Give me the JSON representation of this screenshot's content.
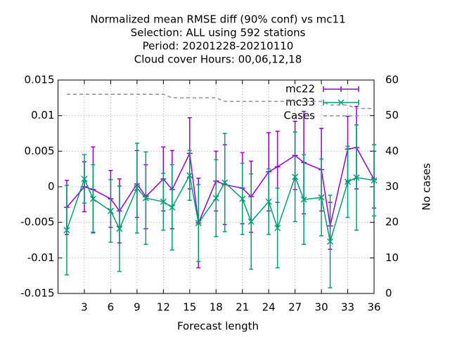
{
  "chart_data": {
    "type": "line",
    "title": [
      "Normalized mean RMSE diff (90% conf) vs mc11",
      "Selection: ALL using   592 stations",
      "Period: 20201228-20210110",
      "Cloud cover   Hours:  00,06,12,18"
    ],
    "x_label": "Forecast length",
    "y2_label": "No cases",
    "x": [
      1,
      3,
      4,
      6,
      7,
      9,
      10,
      12,
      13,
      15,
      16,
      18,
      19,
      21,
      22,
      24,
      25,
      27,
      28,
      30,
      31,
      33,
      34,
      36
    ],
    "series": [
      {
        "name": "mc22",
        "color": "#9400d3",
        "marker": "plus",
        "values": [
          -0.0029,
          0.0,
          -0.0004,
          -0.0017,
          -0.0034,
          0.0004,
          -0.0014,
          0.0011,
          -0.0004,
          0.0047,
          -0.0051,
          0.0008,
          0.0003,
          -0.0002,
          -0.0014,
          0.0021,
          0.0028,
          0.0044,
          0.0034,
          0.0024,
          -0.0055,
          0.0053,
          0.0055,
          0.001
        ],
        "errors": [
          0.0038,
          0.0035,
          0.006,
          0.004,
          0.0045,
          0.0047,
          0.0045,
          0.0045,
          0.0055,
          0.005,
          0.0063,
          0.0042,
          0.0056,
          0.005,
          0.005,
          0.0055,
          0.005,
          0.0048,
          0.0072,
          0.0058,
          0.0033,
          0.0046,
          0.0058,
          0.004
        ]
      },
      {
        "name": "mc33",
        "color": "#009e73",
        "marker": "cross",
        "values": [
          -0.0061,
          0.0011,
          -0.0017,
          -0.0034,
          -0.0059,
          -0.0002,
          -0.0016,
          -0.0021,
          -0.0029,
          0.0016,
          -0.0051,
          -0.0016,
          0.0006,
          -0.0017,
          -0.0049,
          -0.0021,
          -0.0058,
          0.0014,
          -0.0018,
          -0.0015,
          -0.0077,
          0.0007,
          0.0013,
          0.0009
        ],
        "errors": [
          0.0063,
          0.0034,
          0.0048,
          0.0044,
          0.006,
          0.0063,
          0.0065,
          0.004,
          0.006,
          0.0035,
          0.0054,
          0.0054,
          0.0069,
          0.005,
          0.0067,
          0.0046,
          0.0056,
          0.0063,
          0.0063,
          0.0054,
          0.0065,
          0.005,
          0.0074,
          0.005
        ]
      },
      {
        "name": "Cases",
        "color": "#909090",
        "axis": "y2",
        "dashed": true,
        "values": [
          56,
          56,
          56,
          56,
          56,
          56,
          56,
          56,
          55,
          55,
          55,
          55,
          54,
          54,
          54,
          54,
          54,
          54,
          54,
          54,
          53,
          53,
          52,
          52
        ]
      }
    ],
    "xlim": [
      0,
      36
    ],
    "xticks": [
      3,
      6,
      9,
      12,
      15,
      18,
      21,
      24,
      27,
      30,
      33,
      36
    ],
    "ylim": [
      -0.015,
      0.015
    ],
    "yticks": [
      -0.015,
      -0.01,
      -0.005,
      0,
      0.005,
      0.01,
      0.015
    ],
    "y2lim": [
      0,
      60
    ],
    "y2ticks": [
      0,
      10,
      20,
      30,
      40,
      50,
      60
    ],
    "grid": true,
    "legend": "top-right"
  }
}
